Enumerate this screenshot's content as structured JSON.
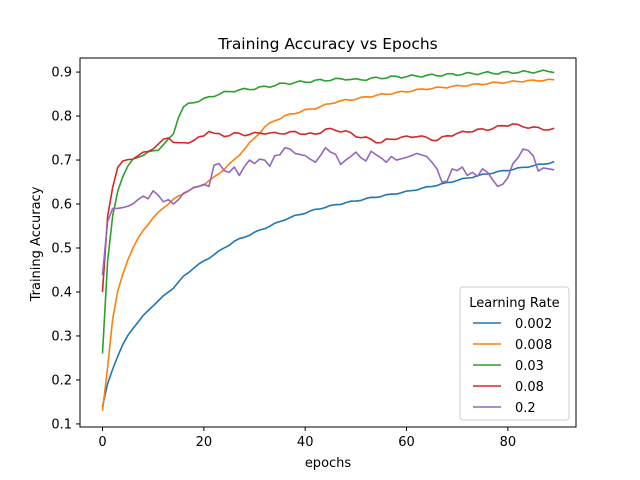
{
  "chart_data": {
    "type": "line",
    "title": "Training Accuracy vs Epochs",
    "xlabel": "epochs",
    "ylabel": "Training Accuracy",
    "xlim": [
      -4.45,
      93.45
    ],
    "ylim": [
      0.093,
      0.932
    ],
    "xticks": [
      0,
      20,
      40,
      60,
      80
    ],
    "yticks": [
      0.1,
      0.2,
      0.3,
      0.4,
      0.5,
      0.6,
      0.7,
      0.8,
      0.9
    ],
    "grid": false,
    "legend": {
      "title": "Learning Rate",
      "placement": "lower-right"
    },
    "series": [
      {
        "name": "0.002",
        "color": "#1f77b4",
        "anchors": [
          [
            0,
            0.14
          ],
          [
            1,
            0.19
          ],
          [
            2,
            0.225
          ],
          [
            3,
            0.255
          ],
          [
            4,
            0.28
          ],
          [
            5,
            0.3
          ],
          [
            6,
            0.318
          ],
          [
            7,
            0.332
          ],
          [
            8,
            0.345
          ],
          [
            9,
            0.357
          ],
          [
            10,
            0.37
          ],
          [
            12,
            0.39
          ],
          [
            14,
            0.41
          ],
          [
            16,
            0.435
          ],
          [
            18,
            0.455
          ],
          [
            20,
            0.47
          ],
          [
            22,
            0.485
          ],
          [
            24,
            0.5
          ],
          [
            26,
            0.515
          ],
          [
            28,
            0.525
          ],
          [
            30,
            0.535
          ],
          [
            32,
            0.545
          ],
          [
            34,
            0.555
          ],
          [
            36,
            0.565
          ],
          [
            38,
            0.573
          ],
          [
            40,
            0.58
          ],
          [
            42,
            0.587
          ],
          [
            44,
            0.593
          ],
          [
            46,
            0.598
          ],
          [
            48,
            0.603
          ],
          [
            50,
            0.607
          ],
          [
            52,
            0.612
          ],
          [
            54,
            0.616
          ],
          [
            56,
            0.62
          ],
          [
            58,
            0.624
          ],
          [
            60,
            0.628
          ],
          [
            62,
            0.633
          ],
          [
            64,
            0.638
          ],
          [
            66,
            0.643
          ],
          [
            68,
            0.648
          ],
          [
            70,
            0.654
          ],
          [
            72,
            0.659
          ],
          [
            74,
            0.664
          ],
          [
            76,
            0.669
          ],
          [
            78,
            0.673
          ],
          [
            80,
            0.677
          ],
          [
            82,
            0.681
          ],
          [
            84,
            0.685
          ],
          [
            86,
            0.689
          ],
          [
            88,
            0.693
          ],
          [
            89,
            0.695
          ]
        ],
        "wiggle": 0.0015
      },
      {
        "name": "0.008",
        "color": "#ff7f0e",
        "anchors": [
          [
            0,
            0.13
          ],
          [
            1,
            0.23
          ],
          [
            2,
            0.34
          ],
          [
            3,
            0.4
          ],
          [
            4,
            0.44
          ],
          [
            5,
            0.475
          ],
          [
            6,
            0.5
          ],
          [
            7,
            0.52
          ],
          [
            8,
            0.54
          ],
          [
            9,
            0.555
          ],
          [
            10,
            0.568
          ],
          [
            12,
            0.592
          ],
          [
            14,
            0.61
          ],
          [
            16,
            0.625
          ],
          [
            18,
            0.635
          ],
          [
            20,
            0.645
          ],
          [
            22,
            0.66
          ],
          [
            24,
            0.68
          ],
          [
            26,
            0.7
          ],
          [
            28,
            0.725
          ],
          [
            30,
            0.75
          ],
          [
            32,
            0.775
          ],
          [
            34,
            0.79
          ],
          [
            36,
            0.8
          ],
          [
            38,
            0.807
          ],
          [
            40,
            0.813
          ],
          [
            42,
            0.818
          ],
          [
            44,
            0.825
          ],
          [
            46,
            0.832
          ],
          [
            48,
            0.836
          ],
          [
            50,
            0.839
          ],
          [
            52,
            0.843
          ],
          [
            54,
            0.847
          ],
          [
            56,
            0.85
          ],
          [
            58,
            0.853
          ],
          [
            60,
            0.856
          ],
          [
            62,
            0.859
          ],
          [
            64,
            0.862
          ],
          [
            66,
            0.864
          ],
          [
            68,
            0.866
          ],
          [
            70,
            0.868
          ],
          [
            72,
            0.87
          ],
          [
            74,
            0.872
          ],
          [
            76,
            0.874
          ],
          [
            78,
            0.876
          ],
          [
            80,
            0.877
          ],
          [
            82,
            0.879
          ],
          [
            84,
            0.88
          ],
          [
            86,
            0.881
          ],
          [
            88,
            0.882
          ],
          [
            89,
            0.882
          ]
        ],
        "wiggle": 0.002
      },
      {
        "name": "0.03",
        "color": "#2ca02c",
        "anchors": [
          [
            0,
            0.265
          ],
          [
            1,
            0.47
          ],
          [
            2,
            0.57
          ],
          [
            3,
            0.63
          ],
          [
            4,
            0.665
          ],
          [
            5,
            0.685
          ],
          [
            6,
            0.7
          ],
          [
            7,
            0.708
          ],
          [
            8,
            0.712
          ],
          [
            9,
            0.716
          ],
          [
            10,
            0.72
          ],
          [
            11,
            0.725
          ],
          [
            12,
            0.735
          ],
          [
            13,
            0.745
          ],
          [
            14,
            0.76
          ],
          [
            15,
            0.8
          ],
          [
            16,
            0.82
          ],
          [
            17,
            0.827
          ],
          [
            18,
            0.832
          ],
          [
            20,
            0.838
          ],
          [
            22,
            0.847
          ],
          [
            24,
            0.853
          ],
          [
            26,
            0.858
          ],
          [
            28,
            0.86
          ],
          [
            30,
            0.863
          ],
          [
            32,
            0.866
          ],
          [
            34,
            0.87
          ],
          [
            36,
            0.874
          ],
          [
            38,
            0.876
          ],
          [
            40,
            0.878
          ],
          [
            42,
            0.88
          ],
          [
            44,
            0.882
          ],
          [
            46,
            0.883
          ],
          [
            48,
            0.885
          ],
          [
            50,
            0.882
          ],
          [
            52,
            0.884
          ],
          [
            54,
            0.886
          ],
          [
            56,
            0.888
          ],
          [
            58,
            0.889
          ],
          [
            60,
            0.89
          ],
          [
            62,
            0.891
          ],
          [
            64,
            0.892
          ],
          [
            66,
            0.893
          ],
          [
            68,
            0.894
          ],
          [
            70,
            0.895
          ],
          [
            72,
            0.896
          ],
          [
            74,
            0.897
          ],
          [
            76,
            0.898
          ],
          [
            78,
            0.898
          ],
          [
            80,
            0.899
          ],
          [
            82,
            0.9
          ],
          [
            84,
            0.9
          ],
          [
            86,
            0.901
          ],
          [
            88,
            0.902
          ],
          [
            89,
            0.902
          ]
        ],
        "wiggle": 0.003
      },
      {
        "name": "0.08",
        "color": "#d62728",
        "anchors": [
          [
            0,
            0.4
          ],
          [
            1,
            0.57
          ],
          [
            2,
            0.64
          ],
          [
            3,
            0.685
          ],
          [
            4,
            0.695
          ],
          [
            5,
            0.7
          ],
          [
            6,
            0.705
          ],
          [
            7,
            0.71
          ],
          [
            8,
            0.715
          ],
          [
            9,
            0.72
          ],
          [
            10,
            0.728
          ],
          [
            11,
            0.735
          ],
          [
            12,
            0.745
          ],
          [
            13,
            0.752
          ],
          [
            14,
            0.742
          ],
          [
            15,
            0.737
          ],
          [
            16,
            0.738
          ],
          [
            18,
            0.745
          ],
          [
            20,
            0.755
          ],
          [
            21,
            0.768
          ],
          [
            22,
            0.76
          ],
          [
            24,
            0.755
          ],
          [
            26,
            0.76
          ],
          [
            28,
            0.758
          ],
          [
            30,
            0.76
          ],
          [
            32,
            0.762
          ],
          [
            34,
            0.76
          ],
          [
            36,
            0.762
          ],
          [
            38,
            0.763
          ],
          [
            40,
            0.76
          ],
          [
            42,
            0.758
          ],
          [
            44,
            0.77
          ],
          [
            46,
            0.768
          ],
          [
            48,
            0.765
          ],
          [
            50,
            0.755
          ],
          [
            52,
            0.75
          ],
          [
            54,
            0.742
          ],
          [
            55,
            0.74
          ],
          [
            56,
            0.745
          ],
          [
            58,
            0.75
          ],
          [
            60,
            0.752
          ],
          [
            62,
            0.755
          ],
          [
            64,
            0.75
          ],
          [
            66,
            0.745
          ],
          [
            68,
            0.755
          ],
          [
            70,
            0.76
          ],
          [
            72,
            0.765
          ],
          [
            74,
            0.768
          ],
          [
            76,
            0.77
          ],
          [
            78,
            0.775
          ],
          [
            80,
            0.78
          ],
          [
            81,
            0.782
          ],
          [
            82,
            0.778
          ],
          [
            84,
            0.775
          ],
          [
            86,
            0.772
          ],
          [
            88,
            0.77
          ],
          [
            89,
            0.769
          ]
        ],
        "wiggle": 0.003
      },
      {
        "name": "0.2",
        "color": "#9467bd",
        "anchors": [
          [
            0,
            0.44
          ],
          [
            1,
            0.56
          ],
          [
            2,
            0.59
          ],
          [
            3,
            0.59
          ],
          [
            4,
            0.592
          ],
          [
            5,
            0.595
          ],
          [
            6,
            0.6
          ],
          [
            7,
            0.61
          ],
          [
            8,
            0.618
          ],
          [
            9,
            0.612
          ],
          [
            10,
            0.63
          ],
          [
            11,
            0.62
          ],
          [
            12,
            0.605
          ],
          [
            13,
            0.61
          ],
          [
            14,
            0.6
          ],
          [
            15,
            0.61
          ],
          [
            16,
            0.625
          ],
          [
            17,
            0.63
          ],
          [
            18,
            0.638
          ],
          [
            19,
            0.64
          ],
          [
            20,
            0.645
          ],
          [
            21,
            0.64
          ],
          [
            22,
            0.688
          ],
          [
            23,
            0.692
          ],
          [
            24,
            0.676
          ],
          [
            25,
            0.672
          ],
          [
            26,
            0.684
          ],
          [
            27,
            0.665
          ],
          [
            28,
            0.685
          ],
          [
            29,
            0.7
          ],
          [
            30,
            0.692
          ],
          [
            31,
            0.702
          ],
          [
            32,
            0.7
          ],
          [
            33,
            0.686
          ],
          [
            34,
            0.71
          ],
          [
            35,
            0.712
          ],
          [
            36,
            0.728
          ],
          [
            37,
            0.725
          ],
          [
            38,
            0.715
          ],
          [
            40,
            0.71
          ],
          [
            41,
            0.702
          ],
          [
            42,
            0.695
          ],
          [
            43,
            0.71
          ],
          [
            44,
            0.728
          ],
          [
            45,
            0.718
          ],
          [
            46,
            0.713
          ],
          [
            47,
            0.69
          ],
          [
            48,
            0.7
          ],
          [
            49,
            0.708
          ],
          [
            50,
            0.718
          ],
          [
            51,
            0.705
          ],
          [
            52,
            0.698
          ],
          [
            53,
            0.72
          ],
          [
            54,
            0.712
          ],
          [
            55,
            0.705
          ],
          [
            56,
            0.695
          ],
          [
            57,
            0.708
          ],
          [
            58,
            0.7
          ],
          [
            60,
            0.706
          ],
          [
            61,
            0.71
          ],
          [
            62,
            0.715
          ],
          [
            64,
            0.708
          ],
          [
            65,
            0.695
          ],
          [
            66,
            0.68
          ],
          [
            67,
            0.65
          ],
          [
            68,
            0.652
          ],
          [
            69,
            0.68
          ],
          [
            70,
            0.676
          ],
          [
            71,
            0.684
          ],
          [
            72,
            0.665
          ],
          [
            73,
            0.672
          ],
          [
            74,
            0.663
          ],
          [
            75,
            0.68
          ],
          [
            76,
            0.672
          ],
          [
            77,
            0.655
          ],
          [
            78,
            0.64
          ],
          [
            79,
            0.645
          ],
          [
            80,
            0.66
          ],
          [
            81,
            0.692
          ],
          [
            82,
            0.705
          ],
          [
            83,
            0.725
          ],
          [
            84,
            0.722
          ],
          [
            85,
            0.71
          ],
          [
            86,
            0.675
          ],
          [
            87,
            0.682
          ],
          [
            88,
            0.68
          ],
          [
            89,
            0.678
          ]
        ],
        "wiggle": 0.0
      }
    ]
  }
}
